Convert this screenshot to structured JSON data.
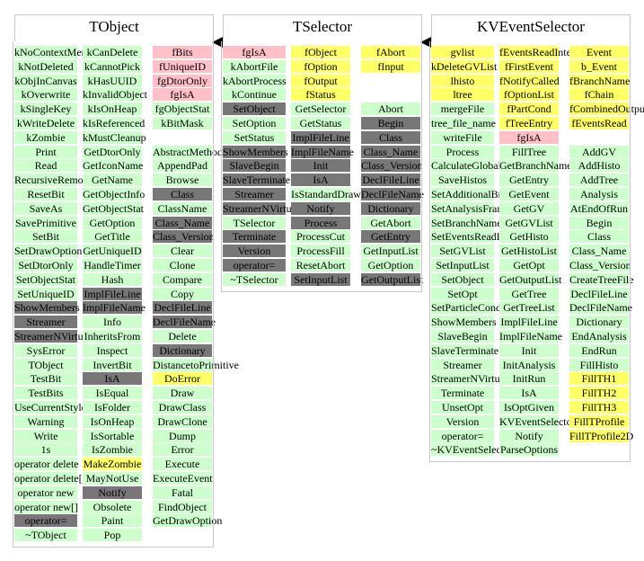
{
  "classes": [
    {
      "name": "TObject",
      "columns": [
        [
          {
            "t": "kNoContextMenu",
            "c": "g"
          },
          {
            "t": "kNotDeleted",
            "c": "g"
          },
          {
            "t": "kObjInCanvas",
            "c": "g"
          },
          {
            "t": "kOverwrite",
            "c": "g"
          },
          {
            "t": "kSingleKey",
            "c": "g"
          },
          {
            "t": "kWriteDelete",
            "c": "g"
          },
          {
            "t": "kZombie",
            "c": "g"
          },
          {
            "t": "Print",
            "c": "g"
          },
          {
            "t": "Read",
            "c": "g"
          },
          {
            "t": "RecursiveRemove",
            "c": "g"
          },
          {
            "t": "ResetBit",
            "c": "g"
          },
          {
            "t": "SaveAs",
            "c": "g"
          },
          {
            "t": "SavePrimitive",
            "c": "g"
          },
          {
            "t": "SetBit",
            "c": "g"
          },
          {
            "t": "SetDrawOption",
            "c": "g"
          },
          {
            "t": "SetDtorOnly",
            "c": "g"
          },
          {
            "t": "SetObjectStat",
            "c": "g"
          },
          {
            "t": "SetUniqueID",
            "c": "g"
          },
          {
            "t": "ShowMembers",
            "c": "d"
          },
          {
            "t": "Streamer",
            "c": "d"
          },
          {
            "t": "StreamerNVirtual",
            "c": "d"
          },
          {
            "t": "SysError",
            "c": "g"
          },
          {
            "t": "TObject",
            "c": "g"
          },
          {
            "t": "TestBit",
            "c": "g"
          },
          {
            "t": "TestBits",
            "c": "g"
          },
          {
            "t": "UseCurrentStyle",
            "c": "g"
          },
          {
            "t": "Warning",
            "c": "g"
          },
          {
            "t": "Write",
            "c": "g"
          },
          {
            "t": "1s",
            "c": "g"
          },
          {
            "t": "operator delete",
            "c": "g"
          },
          {
            "t": "operator delete[]",
            "c": "g"
          },
          {
            "t": "operator new",
            "c": "g"
          },
          {
            "t": "operator new[]",
            "c": "g"
          },
          {
            "t": "operator=",
            "c": "d"
          },
          {
            "t": "~TObject",
            "c": "g"
          }
        ],
        [
          {
            "t": "kCanDelete",
            "c": "g"
          },
          {
            "t": "kCannotPick",
            "c": "g"
          },
          {
            "t": "kHasUUID",
            "c": "g"
          },
          {
            "t": "kInvalidObject",
            "c": "g"
          },
          {
            "t": "kIsOnHeap",
            "c": "g"
          },
          {
            "t": "kIsReferenced",
            "c": "g"
          },
          {
            "t": "kMustCleanup",
            "c": "g"
          },
          {
            "t": "GetDtorOnly",
            "c": "g"
          },
          {
            "t": "GetIconName",
            "c": "g"
          },
          {
            "t": "GetName",
            "c": "g"
          },
          {
            "t": "GetObjectInfo",
            "c": "g"
          },
          {
            "t": "GetObjectStat",
            "c": "g"
          },
          {
            "t": "GetOption",
            "c": "g"
          },
          {
            "t": "GetTitle",
            "c": "g"
          },
          {
            "t": "GetUniqueID",
            "c": "g"
          },
          {
            "t": "HandleTimer",
            "c": "g"
          },
          {
            "t": "Hash",
            "c": "g"
          },
          {
            "t": "ImplFileLine",
            "c": "d"
          },
          {
            "t": "ImplFileName",
            "c": "d"
          },
          {
            "t": "Info",
            "c": "g"
          },
          {
            "t": "InheritsFrom",
            "c": "g"
          },
          {
            "t": "Inspect",
            "c": "g"
          },
          {
            "t": "InvertBit",
            "c": "g"
          },
          {
            "t": "IsA",
            "c": "d"
          },
          {
            "t": "IsEqual",
            "c": "g"
          },
          {
            "t": "IsFolder",
            "c": "g"
          },
          {
            "t": "IsOnHeap",
            "c": "g"
          },
          {
            "t": "IsSortable",
            "c": "g"
          },
          {
            "t": "IsZombie",
            "c": "g"
          },
          {
            "t": "MakeZombie",
            "c": "y"
          },
          {
            "t": "MayNotUse",
            "c": "g"
          },
          {
            "t": "Notify",
            "c": "d"
          },
          {
            "t": "Obsolete",
            "c": "g"
          },
          {
            "t": "Paint",
            "c": "g"
          },
          {
            "t": "Pop",
            "c": "g"
          }
        ],
        [
          {
            "t": "fBits",
            "c": "p"
          },
          {
            "t": "fUniqueID",
            "c": "p"
          },
          {
            "t": "fgDtorOnly",
            "c": "p"
          },
          {
            "t": "fgIsA",
            "c": "p"
          },
          {
            "t": "fgObjectStat",
            "c": "g"
          },
          {
            "t": "kBitMask",
            "c": "g"
          },
          {
            "t": "",
            "c": "w"
          },
          {
            "t": "AbstractMethod",
            "c": "g"
          },
          {
            "t": "AppendPad",
            "c": "g"
          },
          {
            "t": "Browse",
            "c": "g"
          },
          {
            "t": "Class",
            "c": "d"
          },
          {
            "t": "ClassName",
            "c": "g"
          },
          {
            "t": "Class_Name",
            "c": "d"
          },
          {
            "t": "Class_Version",
            "c": "d"
          },
          {
            "t": "Clear",
            "c": "g"
          },
          {
            "t": "Clone",
            "c": "g"
          },
          {
            "t": "Compare",
            "c": "g"
          },
          {
            "t": "Copy",
            "c": "g"
          },
          {
            "t": "DeclFileLine",
            "c": "d"
          },
          {
            "t": "DeclFileName",
            "c": "d"
          },
          {
            "t": "Delete",
            "c": "g"
          },
          {
            "t": "Dictionary",
            "c": "d"
          },
          {
            "t": "DistancetoPrimitive",
            "c": "g"
          },
          {
            "t": "DoError",
            "c": "y"
          },
          {
            "t": "Draw",
            "c": "g"
          },
          {
            "t": "DrawClass",
            "c": "g"
          },
          {
            "t": "DrawClone",
            "c": "g"
          },
          {
            "t": "Dump",
            "c": "g"
          },
          {
            "t": "Error",
            "c": "g"
          },
          {
            "t": "Execute",
            "c": "g"
          },
          {
            "t": "ExecuteEvent",
            "c": "g"
          },
          {
            "t": "Fatal",
            "c": "g"
          },
          {
            "t": "FindObject",
            "c": "g"
          },
          {
            "t": "GetDrawOption",
            "c": "g"
          }
        ]
      ]
    },
    {
      "name": "TSelector",
      "columns": [
        [
          {
            "t": "fgIsA",
            "c": "p"
          },
          {
            "t": "kAbortFile",
            "c": "g"
          },
          {
            "t": "kAbortProcess",
            "c": "g"
          },
          {
            "t": "kContinue",
            "c": "g"
          },
          {
            "t": "SetObject",
            "c": "d"
          },
          {
            "t": "SetOption",
            "c": "g"
          },
          {
            "t": "SetStatus",
            "c": "g"
          },
          {
            "t": "ShowMembers",
            "c": "d"
          },
          {
            "t": "SlaveBegin",
            "c": "d"
          },
          {
            "t": "SlaveTerminate",
            "c": "d"
          },
          {
            "t": "Streamer",
            "c": "d"
          },
          {
            "t": "StreamerNVirtual",
            "c": "d"
          },
          {
            "t": "TSelector",
            "c": "g"
          },
          {
            "t": "Terminate",
            "c": "d"
          },
          {
            "t": "Version",
            "c": "d"
          },
          {
            "t": "operator=",
            "c": "d"
          },
          {
            "t": "~TSelector",
            "c": "g"
          }
        ],
        [
          {
            "t": "fObject",
            "c": "y"
          },
          {
            "t": "fOption",
            "c": "y"
          },
          {
            "t": "fOutput",
            "c": "y"
          },
          {
            "t": "fStatus",
            "c": "y"
          },
          {
            "t": "GetSelector",
            "c": "g"
          },
          {
            "t": "GetStatus",
            "c": "g"
          },
          {
            "t": "ImplFileLine",
            "c": "d"
          },
          {
            "t": "ImplFileName",
            "c": "d"
          },
          {
            "t": "Init",
            "c": "d"
          },
          {
            "t": "IsA",
            "c": "d"
          },
          {
            "t": "IsStandardDraw",
            "c": "g"
          },
          {
            "t": "Notify",
            "c": "d"
          },
          {
            "t": "Process",
            "c": "d"
          },
          {
            "t": "ProcessCut",
            "c": "g"
          },
          {
            "t": "ProcessFill",
            "c": "g"
          },
          {
            "t": "ResetAbort",
            "c": "g"
          },
          {
            "t": "SetInputList",
            "c": "d"
          }
        ],
        [
          {
            "t": "fAbort",
            "c": "y"
          },
          {
            "t": "fInput",
            "c": "y"
          },
          {
            "t": "",
            "c": "w"
          },
          {
            "t": "",
            "c": "w"
          },
          {
            "t": "Abort",
            "c": "g"
          },
          {
            "t": "Begin",
            "c": "d"
          },
          {
            "t": "Class",
            "c": "d"
          },
          {
            "t": "Class_Name",
            "c": "d"
          },
          {
            "t": "Class_Version",
            "c": "d"
          },
          {
            "t": "DeclFileLine",
            "c": "d"
          },
          {
            "t": "DeclFileName",
            "c": "d"
          },
          {
            "t": "Dictionary",
            "c": "d"
          },
          {
            "t": "GetAbort",
            "c": "g"
          },
          {
            "t": "GetEntry",
            "c": "d"
          },
          {
            "t": "GetInputList",
            "c": "g"
          },
          {
            "t": "GetOption",
            "c": "g"
          },
          {
            "t": "GetOutputList",
            "c": "d"
          }
        ]
      ]
    },
    {
      "name": "KVEventSelector",
      "columns": [
        [
          {
            "t": "gvlist",
            "c": "y"
          },
          {
            "t": "kDeleteGVList",
            "c": "y"
          },
          {
            "t": "lhisto",
            "c": "y"
          },
          {
            "t": "ltree",
            "c": "y"
          },
          {
            "t": "mergeFile",
            "c": "g"
          },
          {
            "t": "tree_file_name",
            "c": "g"
          },
          {
            "t": "writeFile",
            "c": "g"
          },
          {
            "t": "Process",
            "c": "g"
          },
          {
            "t": "CalculateGlobalVariables",
            "c": "g"
          },
          {
            "t": "SaveHistos",
            "c": "g"
          },
          {
            "t": "SetAdditionalBranchAddress",
            "c": "g"
          },
          {
            "t": "SetAnalysisFrame",
            "c": "g"
          },
          {
            "t": "SetBranchName",
            "c": "g"
          },
          {
            "t": "SetEventsReadInterval",
            "c": "g"
          },
          {
            "t": "SetGVList",
            "c": "g"
          },
          {
            "t": "SetInputList",
            "c": "g"
          },
          {
            "t": "SetObject",
            "c": "g"
          },
          {
            "t": "SetOpt",
            "c": "g"
          },
          {
            "t": "SetParticleConditions",
            "c": "g"
          },
          {
            "t": "ShowMembers",
            "c": "g"
          },
          {
            "t": "SlaveBegin",
            "c": "g"
          },
          {
            "t": "SlaveTerminate",
            "c": "g"
          },
          {
            "t": "Streamer",
            "c": "g"
          },
          {
            "t": "StreamerNVirtual",
            "c": "g"
          },
          {
            "t": "Terminate",
            "c": "g"
          },
          {
            "t": "UnsetOpt",
            "c": "g"
          },
          {
            "t": "Version",
            "c": "g"
          },
          {
            "t": "operator=",
            "c": "g"
          },
          {
            "t": "~KVEventSelector",
            "c": "g"
          }
        ],
        [
          {
            "t": "fEventsReadInterval",
            "c": "y"
          },
          {
            "t": "fFirstEvent",
            "c": "y"
          },
          {
            "t": "fNotifyCalled",
            "c": "y"
          },
          {
            "t": "fOptionList",
            "c": "y"
          },
          {
            "t": "fPartCond",
            "c": "y"
          },
          {
            "t": "fTreeEntry",
            "c": "y"
          },
          {
            "t": "fgIsA",
            "c": "p"
          },
          {
            "t": "FillTree",
            "c": "g"
          },
          {
            "t": "GetBranchName",
            "c": "g"
          },
          {
            "t": "GetEntry",
            "c": "g"
          },
          {
            "t": "GetEvent",
            "c": "g"
          },
          {
            "t": "GetGV",
            "c": "g"
          },
          {
            "t": "GetGVList",
            "c": "g"
          },
          {
            "t": "GetHisto",
            "c": "g"
          },
          {
            "t": "GetHistoList",
            "c": "g"
          },
          {
            "t": "GetOpt",
            "c": "g"
          },
          {
            "t": "GetOutputList",
            "c": "g"
          },
          {
            "t": "GetTree",
            "c": "g"
          },
          {
            "t": "GetTreeList",
            "c": "g"
          },
          {
            "t": "ImplFileLine",
            "c": "g"
          },
          {
            "t": "ImplFileName",
            "c": "g"
          },
          {
            "t": "Init",
            "c": "g"
          },
          {
            "t": "InitAnalysis",
            "c": "g"
          },
          {
            "t": "InitRun",
            "c": "g"
          },
          {
            "t": "IsA",
            "c": "g"
          },
          {
            "t": "IsOptGiven",
            "c": "g"
          },
          {
            "t": "KVEventSelector",
            "c": "g"
          },
          {
            "t": "Notify",
            "c": "g"
          },
          {
            "t": "ParseOptions",
            "c": "g"
          }
        ],
        [
          {
            "t": "Event",
            "c": "y"
          },
          {
            "t": "b_Event",
            "c": "y"
          },
          {
            "t": "fBranchName",
            "c": "y"
          },
          {
            "t": "fChain",
            "c": "y"
          },
          {
            "t": "fCombinedOutputFile",
            "c": "y"
          },
          {
            "t": "fEventsRead",
            "c": "y"
          },
          {
            "t": "",
            "c": "w"
          },
          {
            "t": "AddGV",
            "c": "g"
          },
          {
            "t": "AddHisto",
            "c": "g"
          },
          {
            "t": "AddTree",
            "c": "g"
          },
          {
            "t": "Analysis",
            "c": "g"
          },
          {
            "t": "AtEndOfRun",
            "c": "g"
          },
          {
            "t": "Begin",
            "c": "g"
          },
          {
            "t": "Class",
            "c": "g"
          },
          {
            "t": "Class_Name",
            "c": "g"
          },
          {
            "t": "Class_Version",
            "c": "g"
          },
          {
            "t": "CreateTreeFile",
            "c": "g"
          },
          {
            "t": "DeclFileLine",
            "c": "g"
          },
          {
            "t": "DeclFileName",
            "c": "g"
          },
          {
            "t": "Dictionary",
            "c": "g"
          },
          {
            "t": "EndAnalysis",
            "c": "g"
          },
          {
            "t": "EndRun",
            "c": "g"
          },
          {
            "t": "FillHisto",
            "c": "g"
          },
          {
            "t": "FillTH1",
            "c": "y"
          },
          {
            "t": "FillTH2",
            "c": "y"
          },
          {
            "t": "FillTH3",
            "c": "y"
          },
          {
            "t": "FillTProfile",
            "c": "y"
          },
          {
            "t": "FillTProfile2D",
            "c": "y"
          }
        ]
      ]
    }
  ],
  "colors": {
    "green": "#ccffcc",
    "yellow": "#ffff66",
    "pink": "#ffc0c8",
    "dark": "#777777",
    "border": "#c8c8c8"
  }
}
